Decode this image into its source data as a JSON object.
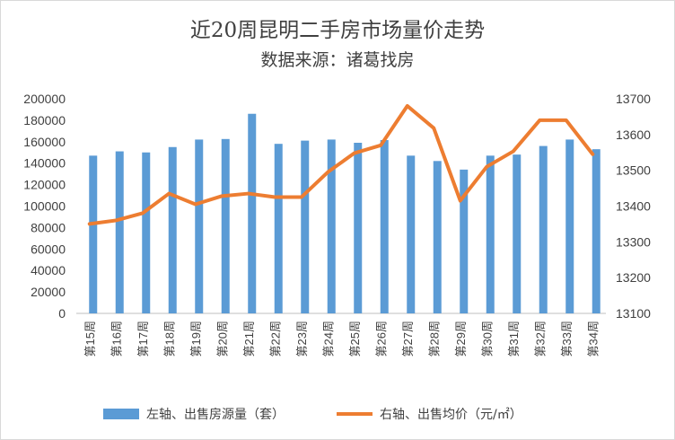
{
  "chart_data": {
    "type": "bar+line",
    "title": "近20周昆明二手房市场量价走势",
    "subtitle": "数据来源：诸葛找房",
    "categories": [
      "第15周",
      "第16周",
      "第17周",
      "第18周",
      "第19周",
      "第20周",
      "第21周",
      "第22周",
      "第23周",
      "第24周",
      "第25周",
      "第26周",
      "第27周",
      "第28周",
      "第29周",
      "第30周",
      "第31周",
      "第32周",
      "第33周",
      "第34周"
    ],
    "series": [
      {
        "name": "左轴、出售房源量（套）",
        "type": "bar",
        "axis": "left",
        "color": "#5b9bd5",
        "values": [
          147000,
          151000,
          150000,
          155000,
          162000,
          162500,
          186000,
          158000,
          161000,
          162000,
          159000,
          161500,
          147000,
          142000,
          134000,
          147000,
          148000,
          156000,
          162000,
          153000
        ]
      },
      {
        "name": "右轴、出售均价（元/㎡）",
        "type": "line",
        "axis": "right",
        "color": "#ed7d31",
        "values": [
          13350,
          13360,
          13380,
          13435,
          13405,
          13428,
          13435,
          13425,
          13425,
          13495,
          13548,
          13570,
          13680,
          13618,
          13415,
          13510,
          13553,
          13640,
          13640,
          13545
        ]
      }
    ],
    "y_left": {
      "min": 0,
      "max": 200000,
      "step": 20000,
      "ticks": [
        "0",
        "20000",
        "40000",
        "60000",
        "80000",
        "100000",
        "120000",
        "140000",
        "160000",
        "180000",
        "200000"
      ]
    },
    "y_right": {
      "min": 13100,
      "max": 13700,
      "step": 100,
      "ticks": [
        "13100",
        "13200",
        "13300",
        "13400",
        "13500",
        "13600",
        "13700"
      ]
    },
    "grid": false,
    "legend_position": "bottom"
  }
}
